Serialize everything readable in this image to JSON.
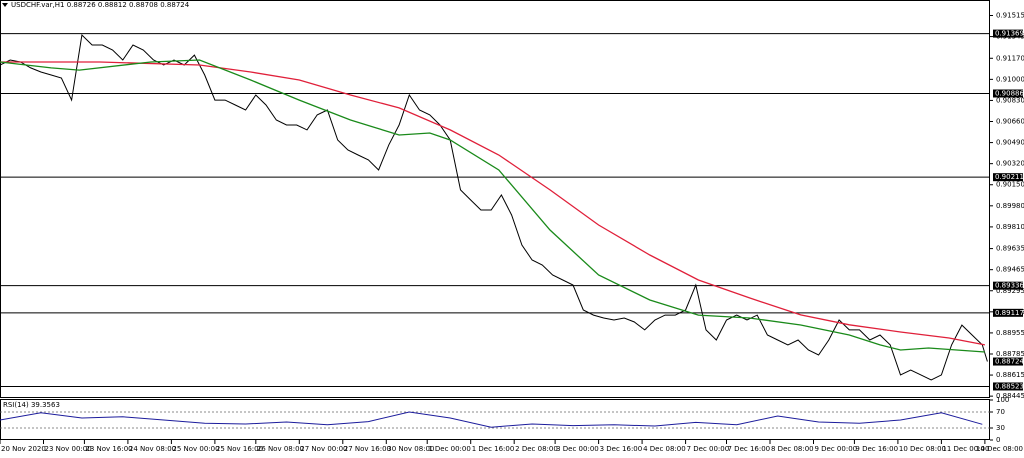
{
  "chart_data": [
    {
      "type": "line",
      "title": "USDCHF.var,H1  0.88726 0.88812 0.88708 0.88724",
      "xlim": [
        0,
        387
      ],
      "ylim": [
        0.8843,
        0.9164
      ],
      "yticks": [
        0.91515,
        0.91345,
        {
          "value": 0.9117,
          "label": "0.91170"
        },
        {
          "value": 0.91,
          "label": "0.91000"
        },
        {
          "value": 0.9083,
          "label": "0.90830"
        },
        {
          "value": 0.9066,
          "label": "0.90660"
        },
        {
          "value": 0.9049,
          "label": "0.90490"
        },
        {
          "value": 0.9032,
          "label": "0.90320"
        },
        {
          "value": 0.9015,
          "label": "0.90150"
        },
        {
          "value": 0.8998,
          "label": "0.89980"
        },
        {
          "value": 0.8981,
          "label": "0.89810"
        },
        0.89635,
        0.89465,
        0.89295,
        0.89125,
        0.88955,
        0.88785,
        0.88615,
        0.88445
      ],
      "xticks": [
        {
          "value": 0,
          "label": "20 Nov 2020"
        },
        {
          "value": 17,
          "label": "23 Nov 00:00"
        },
        {
          "value": 33,
          "label": "23 Nov 16:00"
        },
        {
          "value": 50,
          "label": "24 Nov 08:00"
        },
        {
          "value": 67,
          "label": "25 Nov 00:00"
        },
        {
          "value": 84,
          "label": "25 Nov 16:00"
        },
        {
          "value": 100,
          "label": "26 Nov 08:00"
        },
        {
          "value": 117,
          "label": "27 Nov 00:00"
        },
        {
          "value": 134,
          "label": "27 Nov 16:00"
        },
        {
          "value": 151,
          "label": "30 Nov 08:00"
        },
        {
          "value": 167,
          "label": "1 Dec 00:00"
        },
        {
          "value": 184,
          "label": "1 Dec 16:00"
        },
        {
          "value": 201,
          "label": "2 Dec 08:00"
        },
        {
          "value": 217,
          "label": "3 Dec 00:00"
        },
        {
          "value": 234,
          "label": "3 Dec 16:00"
        },
        {
          "value": 251,
          "label": "4 Dec 08:00"
        },
        {
          "value": 268,
          "label": "7 Dec 00:00"
        },
        {
          "value": 284,
          "label": "7 Dec 16:00"
        },
        {
          "value": 301,
          "label": "8 Dec 08:00"
        },
        {
          "value": 318,
          "label": "9 Dec 00:00"
        },
        {
          "value": 334,
          "label": "9 Dec 16:00"
        },
        {
          "value": 351,
          "label": "10 Dec 08:00"
        },
        {
          "value": 368,
          "label": "11 Dec 00:00"
        },
        {
          "value": 385,
          "label": "14 Dec 08:00"
        }
      ],
      "levels": [
        0.91369,
        0.90886,
        0.90211,
        0.89336,
        0.89117,
        0.88523
      ],
      "last_price": 0.88724,
      "series": [
        {
          "color": "#000000",
          "x": [
            0,
            4,
            8,
            12,
            16,
            20,
            24,
            28,
            32,
            36,
            40,
            44,
            48,
            52,
            56,
            60,
            64,
            68,
            72,
            76,
            80,
            84,
            88,
            92,
            96,
            100,
            104,
            108,
            112,
            116,
            120,
            124,
            128,
            132,
            136,
            140,
            144,
            148,
            152,
            156,
            160,
            164,
            168,
            172,
            176,
            180,
            184,
            188,
            192,
            196,
            200,
            204,
            208,
            212,
            216,
            220,
            224,
            228,
            232,
            236,
            240,
            244,
            248,
            252,
            256,
            260,
            264,
            268,
            272,
            276,
            280,
            284,
            288,
            292,
            296,
            300,
            304,
            308,
            312,
            316,
            320,
            324,
            328,
            332,
            336,
            340,
            344,
            348,
            352,
            356,
            360,
            364,
            368,
            372,
            376,
            380,
            384,
            386
          ],
          "values": [
            0.91116,
            0.91156,
            0.9114,
            0.91092,
            0.91059,
            0.91035,
            0.91011,
            0.90833,
            0.91358,
            0.91277,
            0.91277,
            0.91237,
            0.91156,
            0.91277,
            0.91237,
            0.91156,
            0.91116,
            0.91156,
            0.91116,
            0.91196,
            0.91035,
            0.90833,
            0.90833,
            0.90793,
            0.90753,
            0.90874,
            0.90793,
            0.90672,
            0.90632,
            0.90632,
            0.90592,
            0.90713,
            0.90753,
            0.90511,
            0.9043,
            0.9039,
            0.9035,
            0.90269,
            0.90471,
            0.90632,
            0.90874,
            0.90753,
            0.90713,
            0.90632,
            0.90511,
            0.90108,
            0.90027,
            0.89946,
            0.89946,
            0.90067,
            0.89906,
            0.89664,
            0.89543,
            0.89503,
            0.89422,
            0.89382,
            0.89341,
            0.8914,
            0.89099,
            0.89075,
            0.89059,
            0.89075,
            0.89043,
            0.88979,
            0.89059,
            0.89099,
            0.89099,
            0.8914,
            0.89341,
            0.88979,
            0.88898,
            0.89059,
            0.89099,
            0.89059,
            0.89099,
            0.88938,
            0.88898,
            0.88858,
            0.88898,
            0.88817,
            0.88777,
            0.88898,
            0.89059,
            0.88979,
            0.88979,
            0.88898,
            0.88938,
            0.88858,
            0.88616,
            0.88656,
            0.88616,
            0.88575,
            0.88616,
            0.88858,
            0.89018,
            0.88938,
            0.88858,
            0.88724
          ]
        },
        {
          "color": "#e0203a",
          "x": [
            0,
            39,
            78,
            98,
            117,
            137,
            156,
            176,
            195,
            215,
            234,
            254,
            273,
            293,
            313,
            332,
            352,
            371,
            385
          ],
          "values": [
            0.9114,
            0.9114,
            0.91116,
            0.91059,
            0.90995,
            0.90874,
            0.9077,
            0.90592,
            0.9039,
            0.90108,
            0.89825,
            0.89583,
            0.89382,
            0.89237,
            0.891,
            0.8902,
            0.88962,
            0.88914,
            0.88858
          ]
        },
        {
          "color": "#1a8a1a",
          "x": [
            0,
            20,
            31,
            59,
            78,
            98,
            117,
            137,
            156,
            168,
            176,
            195,
            215,
            234,
            254,
            273,
            293,
            313,
            332,
            344,
            352,
            363,
            385
          ],
          "values": [
            0.9114,
            0.91092,
            0.91075,
            0.9114,
            0.91156,
            0.90995,
            0.90833,
            0.90672,
            0.90551,
            0.90567,
            0.90511,
            0.90269,
            0.89785,
            0.89422,
            0.8922,
            0.89099,
            0.89075,
            0.89019,
            0.88938,
            0.88858,
            0.88817,
            0.88833,
            0.88801
          ]
        }
      ]
    },
    {
      "type": "line",
      "title": "RSI(14) 39.3563",
      "xlim": [
        0,
        387
      ],
      "ylim": [
        0,
        100
      ],
      "yticks": [
        0,
        30,
        70,
        100
      ],
      "series": [
        {
          "color": "#1c1c9c",
          "x": [
            0,
            16,
            32,
            48,
            64,
            80,
            96,
            112,
            128,
            144,
            160,
            176,
            192,
            208,
            224,
            240,
            256,
            272,
            288,
            304,
            320,
            336,
            352,
            368,
            384
          ],
          "values": [
            50,
            68,
            55,
            58,
            50,
            42,
            40,
            45,
            38,
            46,
            70,
            55,
            32,
            40,
            36,
            38,
            35,
            44,
            38,
            60,
            45,
            42,
            50,
            68,
            39.3563
          ]
        }
      ]
    }
  ]
}
